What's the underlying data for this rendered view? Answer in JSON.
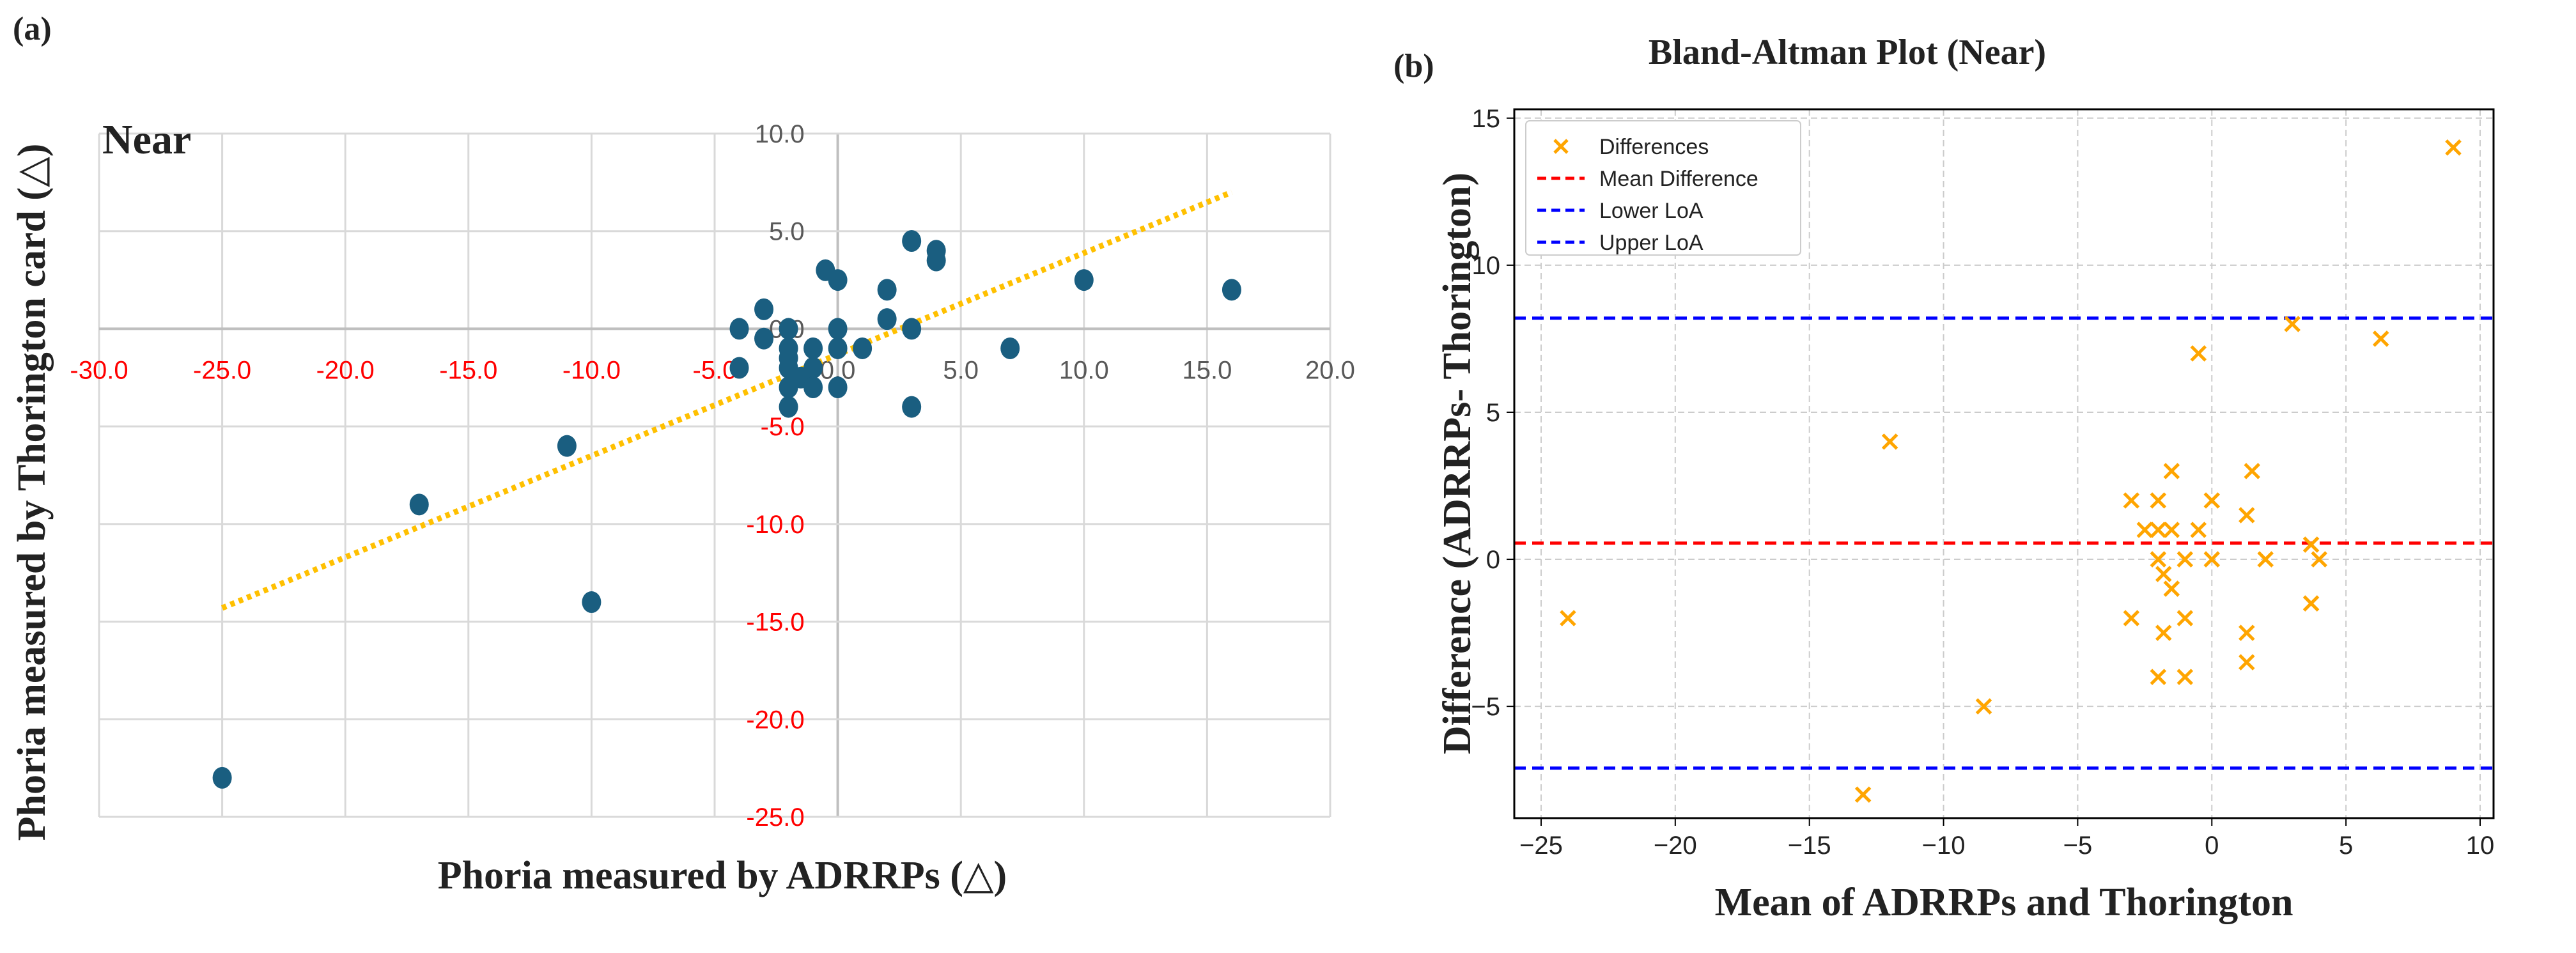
{
  "colors": {
    "point_a": "#1a5e80",
    "trend": "#ffc000",
    "neg_tick": "#ff0000",
    "pos_tick": "#595959",
    "cross": "#ffa500",
    "mean": "#ff0000",
    "loa": "#0000ff"
  },
  "chart_data": [
    {
      "type": "scatter",
      "panel_label": "(a)",
      "annotation": "Near",
      "title": "",
      "xlabel": "Phoria measured by ADRRPs (△)",
      "ylabel": "Phoria measured by Thorington card (△)",
      "xlim": [
        -30,
        20
      ],
      "ylim": [
        -25,
        10
      ],
      "xticks": [
        "-30.0",
        "-25.0",
        "-20.0",
        "-15.0",
        "-10.0",
        "-5.0",
        "0.0",
        "5.0",
        "10.0",
        "15.0",
        "20.0"
      ],
      "xtick_values": [
        -30,
        -25,
        -20,
        -15,
        -10,
        -5,
        0,
        5,
        10,
        15,
        20
      ],
      "yticks": [
        "10.0",
        "5.0",
        "0.0",
        "-5.0",
        "-10.0",
        "-15.0",
        "-20.0",
        "-25.0"
      ],
      "ytick_values": [
        10,
        5,
        0,
        -5,
        -10,
        -15,
        -20,
        -25
      ],
      "grid": true,
      "points": [
        [
          -25,
          -23
        ],
        [
          -17,
          -9
        ],
        [
          -11,
          -6
        ],
        [
          -10,
          -14
        ],
        [
          3,
          4.5
        ],
        [
          4,
          4
        ],
        [
          4,
          3.5
        ],
        [
          -0.5,
          3
        ],
        [
          0,
          2.5
        ],
        [
          2,
          2
        ],
        [
          10,
          2.5
        ],
        [
          16,
          2
        ],
        [
          -3,
          1
        ],
        [
          2,
          0.5
        ],
        [
          -4,
          0
        ],
        [
          -2,
          0
        ],
        [
          0,
          0
        ],
        [
          3,
          0
        ],
        [
          -3,
          -0.5
        ],
        [
          -2,
          -1
        ],
        [
          -1,
          -1
        ],
        [
          0,
          -1
        ],
        [
          1,
          -1
        ],
        [
          7,
          -1
        ],
        [
          -2,
          -1.5
        ],
        [
          -4,
          -2
        ],
        [
          -2,
          -2
        ],
        [
          -1,
          -2
        ],
        [
          -1.5,
          -2.5
        ],
        [
          -2,
          -3
        ],
        [
          -1,
          -3
        ],
        [
          0,
          -3
        ],
        [
          -2,
          -4
        ],
        [
          3,
          -4
        ]
      ],
      "trendline": {
        "x": [
          -25,
          16
        ],
        "y": [
          -14.3,
          7
        ]
      }
    },
    {
      "type": "scatter",
      "panel_label": "(b)",
      "title": "Bland-Altman Plot (Near)",
      "xlabel": "Mean of ADRRPs and Thorington",
      "ylabel": "Difference (ADRRPs- Thorington)",
      "xlim": [
        -26,
        10.5
      ],
      "ylim": [
        -8.8,
        15.3
      ],
      "xticks": [
        "−25",
        "−20",
        "−15",
        "−10",
        "−5",
        "0",
        "5",
        "10"
      ],
      "xtick_values": [
        -25,
        -20,
        -15,
        -10,
        -5,
        0,
        5,
        10
      ],
      "yticks": [
        "15",
        "10",
        "5",
        "0",
        "−5"
      ],
      "ytick_values": [
        15,
        10,
        5,
        0,
        -5
      ],
      "grid": true,
      "legend_position": "top-left",
      "legend": [
        "Differences",
        "Mean Difference",
        "Lower LoA",
        "Upper LoA"
      ],
      "points": [
        [
          9,
          14
        ],
        [
          3,
          8
        ],
        [
          6.3,
          7.5
        ],
        [
          -0.5,
          7
        ],
        [
          -12,
          4
        ],
        [
          -1.5,
          3
        ],
        [
          1.5,
          3
        ],
        [
          -3,
          2
        ],
        [
          -2,
          2
        ],
        [
          0,
          2
        ],
        [
          1.3,
          1.5
        ],
        [
          -2.5,
          1
        ],
        [
          -2,
          1
        ],
        [
          -1.5,
          1
        ],
        [
          -0.5,
          1
        ],
        [
          3.7,
          0.5
        ],
        [
          -2,
          0
        ],
        [
          -1,
          0
        ],
        [
          0,
          0
        ],
        [
          2,
          0
        ],
        [
          4,
          0
        ],
        [
          -1.8,
          -0.5
        ],
        [
          -1.5,
          -1
        ],
        [
          3.7,
          -1.5
        ],
        [
          -3,
          -2
        ],
        [
          -1,
          -2
        ],
        [
          -24,
          -2
        ],
        [
          -1.8,
          -2.5
        ],
        [
          1.3,
          -2.5
        ],
        [
          1.3,
          -3.5
        ],
        [
          -2,
          -4
        ],
        [
          -1,
          -4
        ],
        [
          -8.5,
          -5
        ],
        [
          -13,
          -8
        ]
      ],
      "mean_difference": 0.55,
      "lower_loa": -7.1,
      "upper_loa": 8.2
    }
  ]
}
